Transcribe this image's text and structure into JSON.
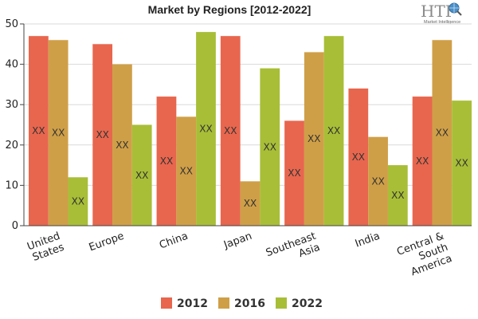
{
  "chart_data": {
    "type": "bar",
    "title": "Market by Regions [2012-2022]",
    "categories": [
      "United States",
      "Europe",
      "China",
      "Japan",
      "Southeast Asia",
      "India",
      "Central & South America"
    ],
    "series": [
      {
        "name": "2012",
        "color": "#e8664e",
        "values": [
          47,
          45,
          32,
          47,
          26,
          34,
          32
        ]
      },
      {
        "name": "2016",
        "color": "#cf9f47",
        "values": [
          46,
          40,
          27,
          11,
          43,
          22,
          46
        ]
      },
      {
        "name": "2022",
        "color": "#a8be37",
        "values": [
          12,
          25,
          48,
          39,
          47,
          15,
          31
        ]
      }
    ],
    "data_label": "XX",
    "ylim": [
      0,
      50
    ],
    "yticks": [
      0,
      10,
      20,
      30,
      40,
      50
    ],
    "grid": true,
    "legend_position": "bottom"
  },
  "logo": {
    "name": "HTF",
    "tagline": "Market Intelligence",
    "icon": "globe-magnifier-icon"
  }
}
